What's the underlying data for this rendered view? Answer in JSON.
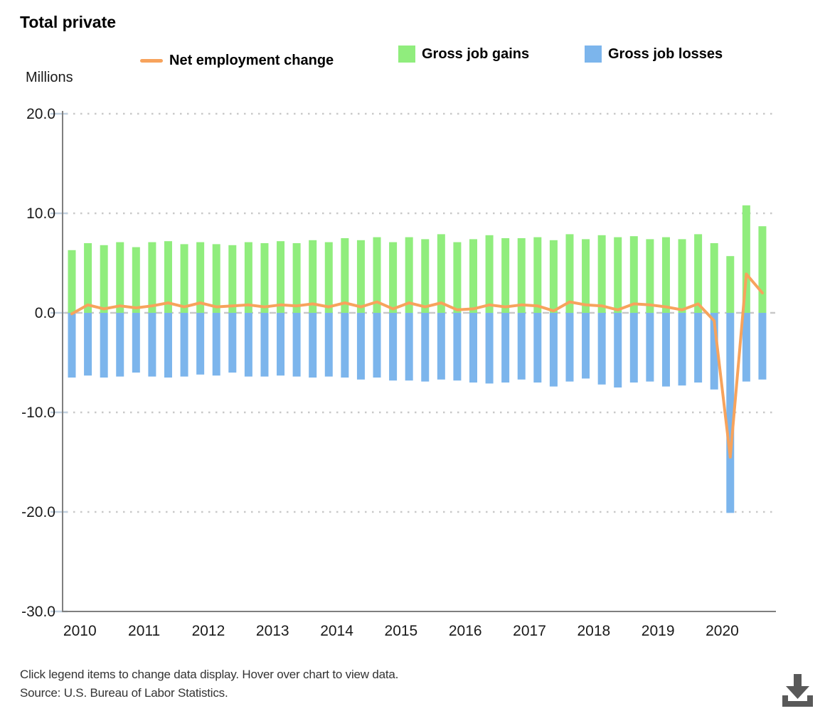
{
  "title": "Total private",
  "y_axis_units": "Millions",
  "legend": [
    {
      "label": "Net employment change",
      "swatch": "line",
      "color": "#f7a35c"
    },
    {
      "label": "Gross job gains",
      "swatch": "square",
      "color": "#90ed7d"
    },
    {
      "label": "Gross job losses",
      "swatch": "square",
      "color": "#7cb5ec"
    }
  ],
  "footer": {
    "instructions": "Click legend items to change data display. Hover over chart to view data.",
    "source": "Source: U.S. Bureau of Labor Statistics."
  },
  "download_button": {
    "icon": "download-icon",
    "color": "#595959"
  },
  "chart_data": {
    "type": "bar",
    "subtype": "grouped quarterly columns with overlaid line",
    "title": "Total private",
    "ylabel": "Millions",
    "ylim": [
      -30,
      20
    ],
    "yticks": [
      20,
      10,
      0,
      -10,
      -20,
      -30
    ],
    "ytick_labels": [
      "20.0",
      "10.0",
      "0.0",
      "-10.0",
      "-20.0",
      "-30.0"
    ],
    "x_years": [
      "2010",
      "2011",
      "2012",
      "2013",
      "2014",
      "2015",
      "2016",
      "2017",
      "2018",
      "2019",
      "2020"
    ],
    "quarters_per_year": 4,
    "grid": "dotted horizontal gridlines, dashed zero line",
    "legend_position": "top",
    "series": [
      {
        "name": "Net employment change",
        "type": "line",
        "color": "#f7a35c",
        "values": [
          -0.1,
          0.8,
          0.4,
          0.7,
          0.5,
          0.7,
          1.0,
          0.6,
          1.0,
          0.6,
          0.7,
          0.8,
          0.6,
          0.8,
          0.7,
          0.9,
          0.6,
          1.0,
          0.6,
          1.1,
          0.4,
          1.0,
          0.6,
          1.0,
          0.3,
          0.4,
          0.8,
          0.6,
          0.8,
          0.7,
          0.2,
          1.1,
          0.8,
          0.7,
          0.3,
          0.9,
          0.8,
          0.6,
          0.3,
          0.9,
          -0.8,
          -14.5,
          3.9,
          2.0
        ]
      },
      {
        "name": "Gross job gains",
        "type": "column",
        "color": "#90ed7d",
        "values": [
          6.3,
          7.0,
          6.8,
          7.1,
          6.6,
          7.1,
          7.2,
          6.9,
          7.1,
          6.9,
          6.8,
          7.1,
          7.0,
          7.2,
          7.0,
          7.3,
          7.1,
          7.5,
          7.3,
          7.6,
          7.1,
          7.6,
          7.4,
          7.9,
          7.1,
          7.4,
          7.8,
          7.5,
          7.5,
          7.6,
          7.3,
          7.9,
          7.4,
          7.8,
          7.6,
          7.7,
          7.4,
          7.6,
          7.4,
          7.9,
          7.0,
          5.7,
          10.8,
          8.7
        ]
      },
      {
        "name": "Gross job losses",
        "type": "column",
        "color": "#7cb5ec",
        "values": [
          -6.5,
          -6.3,
          -6.5,
          -6.4,
          -6.0,
          -6.4,
          -6.5,
          -6.4,
          -6.2,
          -6.3,
          -6.0,
          -6.4,
          -6.4,
          -6.3,
          -6.4,
          -6.5,
          -6.4,
          -6.5,
          -6.7,
          -6.5,
          -6.8,
          -6.8,
          -6.9,
          -6.7,
          -6.8,
          -7.0,
          -7.1,
          -7.0,
          -6.7,
          -7.0,
          -7.4,
          -6.9,
          -6.6,
          -7.2,
          -7.5,
          -7.0,
          -6.9,
          -7.4,
          -7.3,
          -7.0,
          -7.7,
          -20.1,
          -6.9,
          -6.7
        ]
      }
    ]
  }
}
